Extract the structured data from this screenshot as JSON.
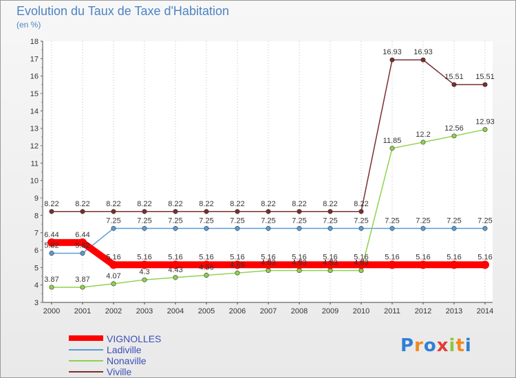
{
  "chart_data": {
    "type": "line",
    "title": "Evolution du Taux de Taxe d'Habitation",
    "unit": "(en %)",
    "x": [
      "2000",
      "2001",
      "2002",
      "2003",
      "2004",
      "2005",
      "2006",
      "2007",
      "2008",
      "2009",
      "2010",
      "2011",
      "2012",
      "2013",
      "2014"
    ],
    "ylim": [
      3,
      18
    ],
    "yticks": [
      3,
      4,
      5,
      6,
      7,
      8,
      9,
      10,
      11,
      12,
      13,
      14,
      15,
      16,
      17,
      18
    ],
    "grid": "vertical-dotted",
    "legend_position": "bottom-left",
    "series": [
      {
        "name": "VIGNOLLES",
        "color": "#ff0000",
        "values": [
          6.44,
          6.44,
          5.16,
          5.16,
          5.16,
          5.16,
          5.16,
          5.16,
          5.16,
          5.16,
          5.16,
          5.16,
          5.16,
          5.16,
          5.16
        ],
        "labels": [
          "6.44",
          "6.44",
          "5.16",
          "5.16",
          "5.16",
          "5.16",
          "5.16",
          "5.16",
          "5.16",
          "5.16",
          "5.16",
          "5.16",
          "5.16",
          "5.16",
          "5.16"
        ]
      },
      {
        "name": "Ladiville",
        "color": "#5b9bd5",
        "values": [
          5.82,
          5.82,
          7.25,
          7.25,
          7.25,
          7.25,
          7.25,
          7.25,
          7.25,
          7.25,
          7.25,
          7.25,
          7.25,
          7.25,
          7.25
        ],
        "labels": [
          "5.82",
          "5.82",
          "7.25",
          "7.25",
          "7.25",
          "7.25",
          "7.25",
          "7.25",
          "7.25",
          "7.25",
          "7.25",
          "7.25",
          "7.25",
          "7.25",
          "7.25"
        ]
      },
      {
        "name": "Nonaville",
        "color": "#8fd14f",
        "values": [
          3.87,
          3.87,
          4.07,
          4.3,
          4.43,
          4.56,
          4.69,
          4.83,
          4.83,
          4.83,
          4.83,
          11.85,
          12.2,
          12.56,
          12.93
        ],
        "labels": [
          "3.87",
          "3.87",
          "4.07",
          "4.3",
          "4.43",
          "4.56",
          "4.69",
          "4.83",
          "4.83",
          "4.83",
          "4.83",
          "11.85",
          "12.2",
          "12.56",
          "12.93"
        ]
      },
      {
        "name": "Viville",
        "color": "#7a2e2e",
        "values": [
          8.22,
          8.22,
          8.22,
          8.22,
          8.22,
          8.22,
          8.22,
          8.22,
          8.22,
          8.22,
          8.22,
          16.93,
          16.93,
          15.51,
          15.51
        ],
        "labels": [
          "8.22",
          "8.22",
          "8.22",
          "8.22",
          "8.22",
          "8.22",
          "8.22",
          "8.22",
          "8.22",
          "8.22",
          "8.22",
          "16.93",
          "16.93",
          "15.51",
          "15.51"
        ]
      }
    ]
  },
  "branding": {
    "logo_text": "Proxiti"
  }
}
